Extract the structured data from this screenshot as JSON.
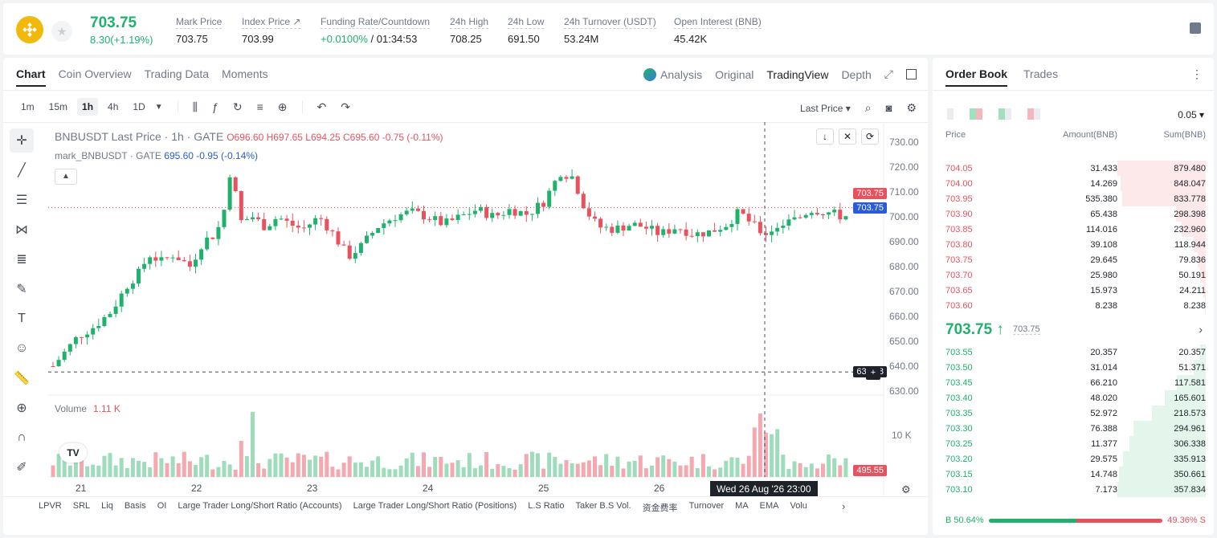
{
  "header": {
    "last_price": "703.75",
    "change": "8.30(+1.19%)",
    "stats": [
      {
        "label": "Mark Price",
        "value": "703.75"
      },
      {
        "label": "Index Price ↗",
        "value": "703.99"
      },
      {
        "label": "Funding Rate/Countdown",
        "value_green": "+0.0100%",
        "value": " / 01:34:53"
      },
      {
        "label": "24h High",
        "value": "708.25"
      },
      {
        "label": "24h Low",
        "value": "691.50"
      },
      {
        "label": "24h Turnover (USDT)",
        "value": "53.24M"
      },
      {
        "label": "Open Interest (BNB)",
        "value": "45.42K"
      }
    ]
  },
  "chart_tabs": [
    "Chart",
    "Coin Overview",
    "Trading Data",
    "Moments"
  ],
  "view_tabs": {
    "analysis": "Analysis",
    "original": "Original",
    "tradingview": "TradingView",
    "depth": "Depth"
  },
  "timeframes": [
    "1m",
    "15m",
    "1h",
    "4h",
    "1D"
  ],
  "active_timeframe": "1h",
  "price_type": "Last Price",
  "legend": {
    "title": "BNBUSDT Last Price · 1h · GATE",
    "ohlc": "O696.60 H697.65 L694.25 C695.60 -0.75 (-0.11%)",
    "mark_label": "mark_BNBUSDT · GATE",
    "mark_vals": "695.60 -0.95 (-0.14%)"
  },
  "volume": {
    "label": "Volume",
    "value": "1.11 K"
  },
  "tags": {
    "price_red": "703.75",
    "price_blue": "703.75",
    "crosshair": "637.68",
    "vol": "495.55"
  },
  "date_tag": "Wed 26 Aug '26   23:00",
  "bottom_indicators": [
    "LPVR",
    "SRL",
    "Liq",
    "Basis",
    "OI",
    "Large Trader Long/Short Ratio (Accounts)",
    "Large Trader Long/Short Ratio (Positions)",
    "L.S Ratio",
    "Taker B.S Vol.",
    "资金费率",
    "Turnover",
    "MA",
    "EMA",
    "Volu"
  ],
  "orderbook": {
    "tabs": [
      "Order Book",
      "Trades"
    ],
    "precision": "0.05",
    "headers": [
      "Price",
      "Amount(BNB)",
      "Sum(BNB)"
    ],
    "asks": [
      {
        "price": "704.05",
        "amount": "31.433",
        "sum": "879.480",
        "depth": 1.0
      },
      {
        "price": "704.00",
        "amount": "14.269",
        "sum": "848.047",
        "depth": 0.96
      },
      {
        "price": "703.95",
        "amount": "535.380",
        "sum": "833.778",
        "depth": 0.95
      },
      {
        "price": "703.90",
        "amount": "65.438",
        "sum": "298.398",
        "depth": 0.34
      },
      {
        "price": "703.85",
        "amount": "114.016",
        "sum": "232.960",
        "depth": 0.27
      },
      {
        "price": "703.80",
        "amount": "39.108",
        "sum": "118.944",
        "depth": 0.14
      },
      {
        "price": "703.75",
        "amount": "29.645",
        "sum": "79.836",
        "depth": 0.09
      },
      {
        "price": "703.70",
        "amount": "25.980",
        "sum": "50.191",
        "depth": 0.06
      },
      {
        "price": "703.65",
        "amount": "15.973",
        "sum": "24.211",
        "depth": 0.03
      },
      {
        "price": "703.60",
        "amount": "8.238",
        "sum": "8.238",
        "depth": 0.01
      }
    ],
    "mid_price": "703.75 ↑",
    "mid_sub": "703.75",
    "bids": [
      {
        "price": "703.55",
        "amount": "20.357",
        "sum": "20.357",
        "depth": 0.06
      },
      {
        "price": "703.50",
        "amount": "31.014",
        "sum": "51.371",
        "depth": 0.14
      },
      {
        "price": "703.45",
        "amount": "66.210",
        "sum": "117.581",
        "depth": 0.33
      },
      {
        "price": "703.40",
        "amount": "48.020",
        "sum": "165.601",
        "depth": 0.46
      },
      {
        "price": "703.35",
        "amount": "52.972",
        "sum": "218.573",
        "depth": 0.61
      },
      {
        "price": "703.30",
        "amount": "76.388",
        "sum": "294.961",
        "depth": 0.82
      },
      {
        "price": "703.25",
        "amount": "11.377",
        "sum": "306.338",
        "depth": 0.86
      },
      {
        "price": "703.20",
        "amount": "29.575",
        "sum": "335.913",
        "depth": 0.94
      },
      {
        "price": "703.15",
        "amount": "14.748",
        "sum": "350.661",
        "depth": 0.98
      },
      {
        "price": "703.10",
        "amount": "7.173",
        "sum": "357.834",
        "depth": 1.0
      }
    ],
    "buy_ratio": "B 50.64%",
    "sell_ratio": "49.36% S",
    "buy_fraction": 0.5064
  },
  "chart_data": {
    "type": "candlestick",
    "ylim": [
      630,
      730
    ],
    "y_ticks": [
      "730.00",
      "720.00",
      "710.00",
      "700.00",
      "690.00",
      "680.00",
      "670.00",
      "660.00",
      "650.00",
      "640.00",
      "630.00"
    ],
    "x_ticks": [
      "21",
      "22",
      "23",
      "24",
      "25",
      "26"
    ],
    "vol_tick": "10 K"
  },
  "colors": {
    "up": "#20b26c",
    "down": "#e8525f",
    "accent": "#f0b90b"
  }
}
